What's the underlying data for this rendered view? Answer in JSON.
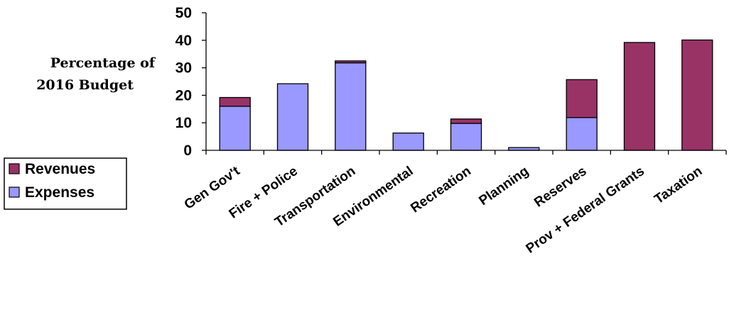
{
  "chart_data": {
    "type": "bar",
    "stacked": true,
    "ylabel_lines": [
      "Percentage of",
      "2016 Budget"
    ],
    "categories": [
      "Gen Gov't",
      "Fire + Police",
      "Transportation",
      "Environmental",
      "Recreation",
      "Planning",
      "Reserves",
      "Prov + Federal Grants",
      "Taxation"
    ],
    "series": [
      {
        "name": "Expenses",
        "color": "#9999ff",
        "values": [
          16,
          24.2,
          31.8,
          6.3,
          9.8,
          1,
          11.9,
          0,
          0
        ]
      },
      {
        "name": "Revenues",
        "color": "#993366",
        "values": [
          3.2,
          0,
          0.7,
          0,
          1.6,
          0,
          13.8,
          39.2,
          40.1
        ]
      }
    ],
    "ylim": [
      0,
      50
    ],
    "yticks": [
      0,
      10,
      20,
      30,
      40,
      50
    ],
    "grid": false,
    "legend": {
      "placement": "left",
      "order": [
        "Revenues",
        "Expenses"
      ]
    }
  }
}
